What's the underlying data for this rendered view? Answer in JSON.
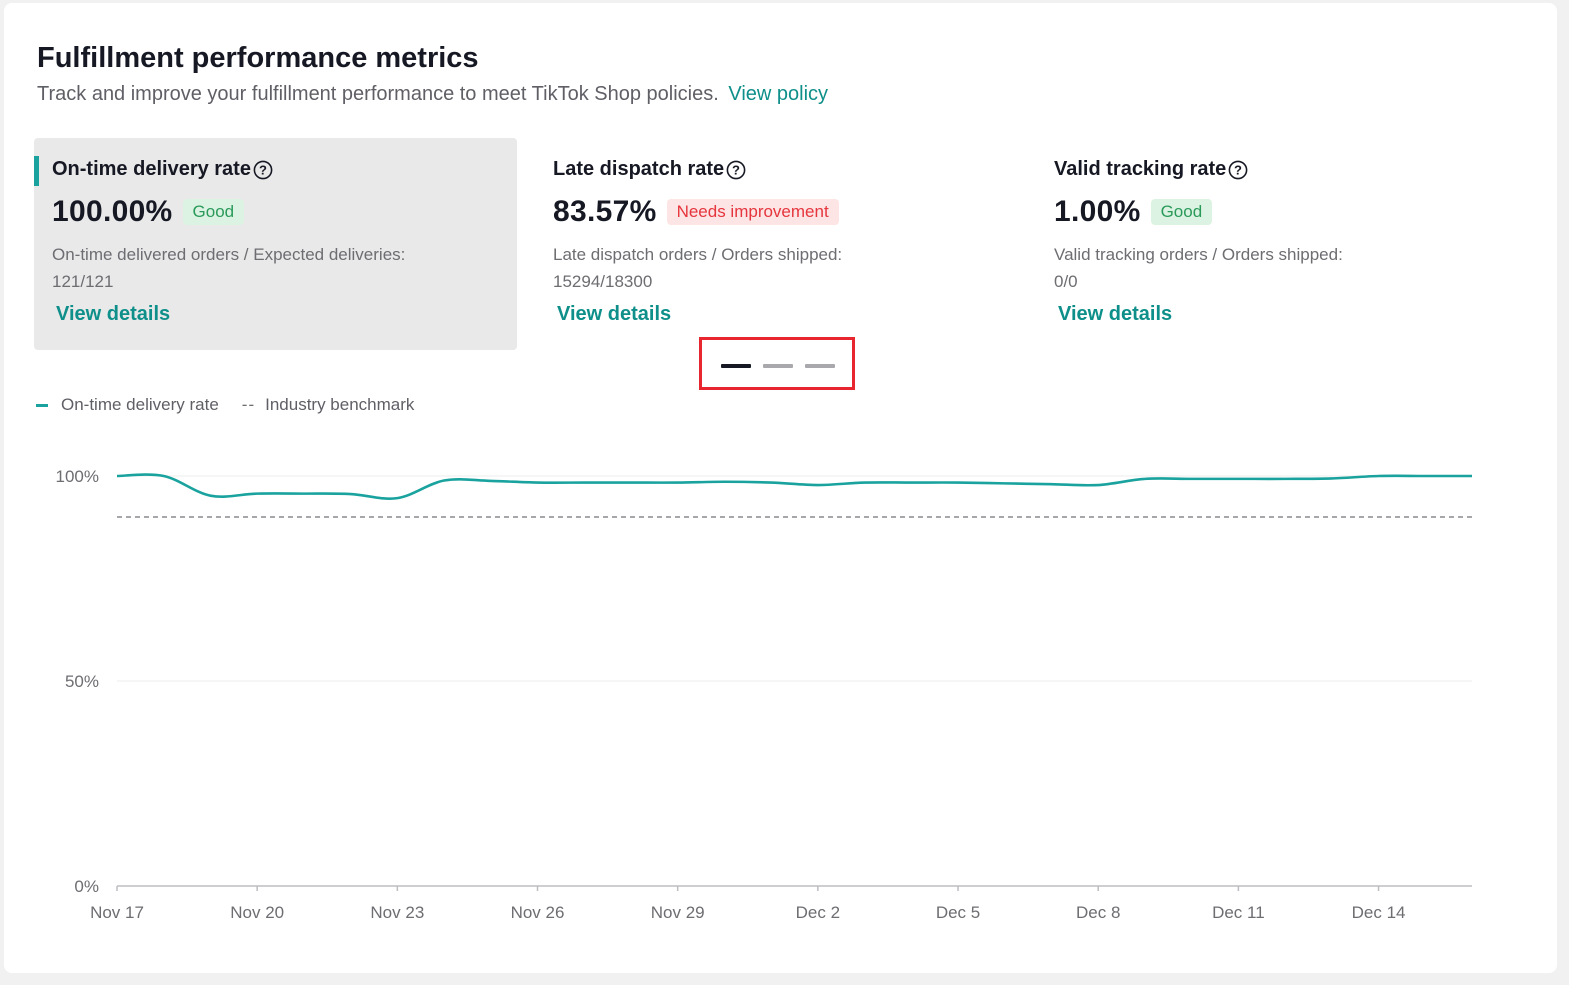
{
  "header": {
    "title": "Fulfillment performance metrics",
    "subtitle": "Track and improve your fulfillment performance to meet TikTok Shop policies.",
    "policy_link": "View policy"
  },
  "cards": [
    {
      "name": "On-time delivery rate",
      "value": "100.00%",
      "status": "Good",
      "desc_line1": "On-time delivered orders / Expected deliveries:",
      "desc_line2": "121/121",
      "details": "View details"
    },
    {
      "name": "Late dispatch rate",
      "value": "83.57%",
      "status": "Needs improvement",
      "desc_line1": "Late dispatch orders / Orders shipped:",
      "desc_line2": "15294/18300",
      "details": "View details"
    },
    {
      "name": "Valid tracking rate",
      "value": "1.00%",
      "status": "Good",
      "desc_line1": "Valid tracking orders / Orders shipped:",
      "desc_line2": "0/0",
      "details": "View details"
    }
  ],
  "pager": {
    "active_index": 0,
    "count": 3
  },
  "legend": {
    "series_label": "On-time delivery rate",
    "benchmark_marker": "--",
    "benchmark_label": "Industry benchmark"
  },
  "colors": {
    "accent": "#1aa39e",
    "link": "#0e8f8a",
    "good_bg": "#dcf3e3",
    "good_text": "#2a9a5a",
    "bad_bg": "#fde4e5",
    "bad_text": "#e5363d",
    "highlight_border": "#e8262f",
    "benchmark": "#8a8a8f"
  },
  "chart_data": {
    "type": "line",
    "ylim": [
      0,
      100
    ],
    "yticks": [
      "0%",
      "50%",
      "100%"
    ],
    "xticks": [
      "Nov 17",
      "Nov 20",
      "Nov 23",
      "Nov 26",
      "Nov 29",
      "Dec 2",
      "Dec 5",
      "Dec 8",
      "Dec 11",
      "Dec 14"
    ],
    "x_start": "Nov 17",
    "x_end": "Dec 16",
    "grid": true,
    "series": [
      {
        "name": "On-time delivery rate",
        "style": "solid",
        "color": "#1aa39e",
        "points": [
          [
            "Nov 17",
            100
          ],
          [
            "Nov 18",
            100
          ],
          [
            "Nov 19",
            95.2
          ],
          [
            "Nov 20",
            95.7
          ],
          [
            "Nov 21",
            95.7
          ],
          [
            "Nov 22",
            95.6
          ],
          [
            "Nov 23",
            94.6
          ],
          [
            "Nov 24",
            98.9
          ],
          [
            "Nov 25",
            98.8
          ],
          [
            "Nov 26",
            98.4
          ],
          [
            "Nov 27",
            98.4
          ],
          [
            "Nov 28",
            98.4
          ],
          [
            "Nov 29",
            98.4
          ],
          [
            "Nov 30",
            98.6
          ],
          [
            "Dec 1",
            98.4
          ],
          [
            "Dec 2",
            97.8
          ],
          [
            "Dec 3",
            98.4
          ],
          [
            "Dec 4",
            98.4
          ],
          [
            "Dec 5",
            98.4
          ],
          [
            "Dec 6",
            98.2
          ],
          [
            "Dec 7",
            98.0
          ],
          [
            "Dec 8",
            97.8
          ],
          [
            "Dec 9",
            99.3
          ],
          [
            "Dec 10",
            99.3
          ],
          [
            "Dec 11",
            99.3
          ],
          [
            "Dec 12",
            99.3
          ],
          [
            "Dec 13",
            99.4
          ],
          [
            "Dec 14",
            100
          ],
          [
            "Dec 15",
            100
          ],
          [
            "Dec 16",
            100
          ]
        ]
      },
      {
        "name": "Industry benchmark",
        "style": "dashed",
        "color": "#8a8a8f",
        "points": [
          [
            "Nov 17",
            90
          ],
          [
            "Dec 16",
            90
          ]
        ]
      }
    ]
  }
}
